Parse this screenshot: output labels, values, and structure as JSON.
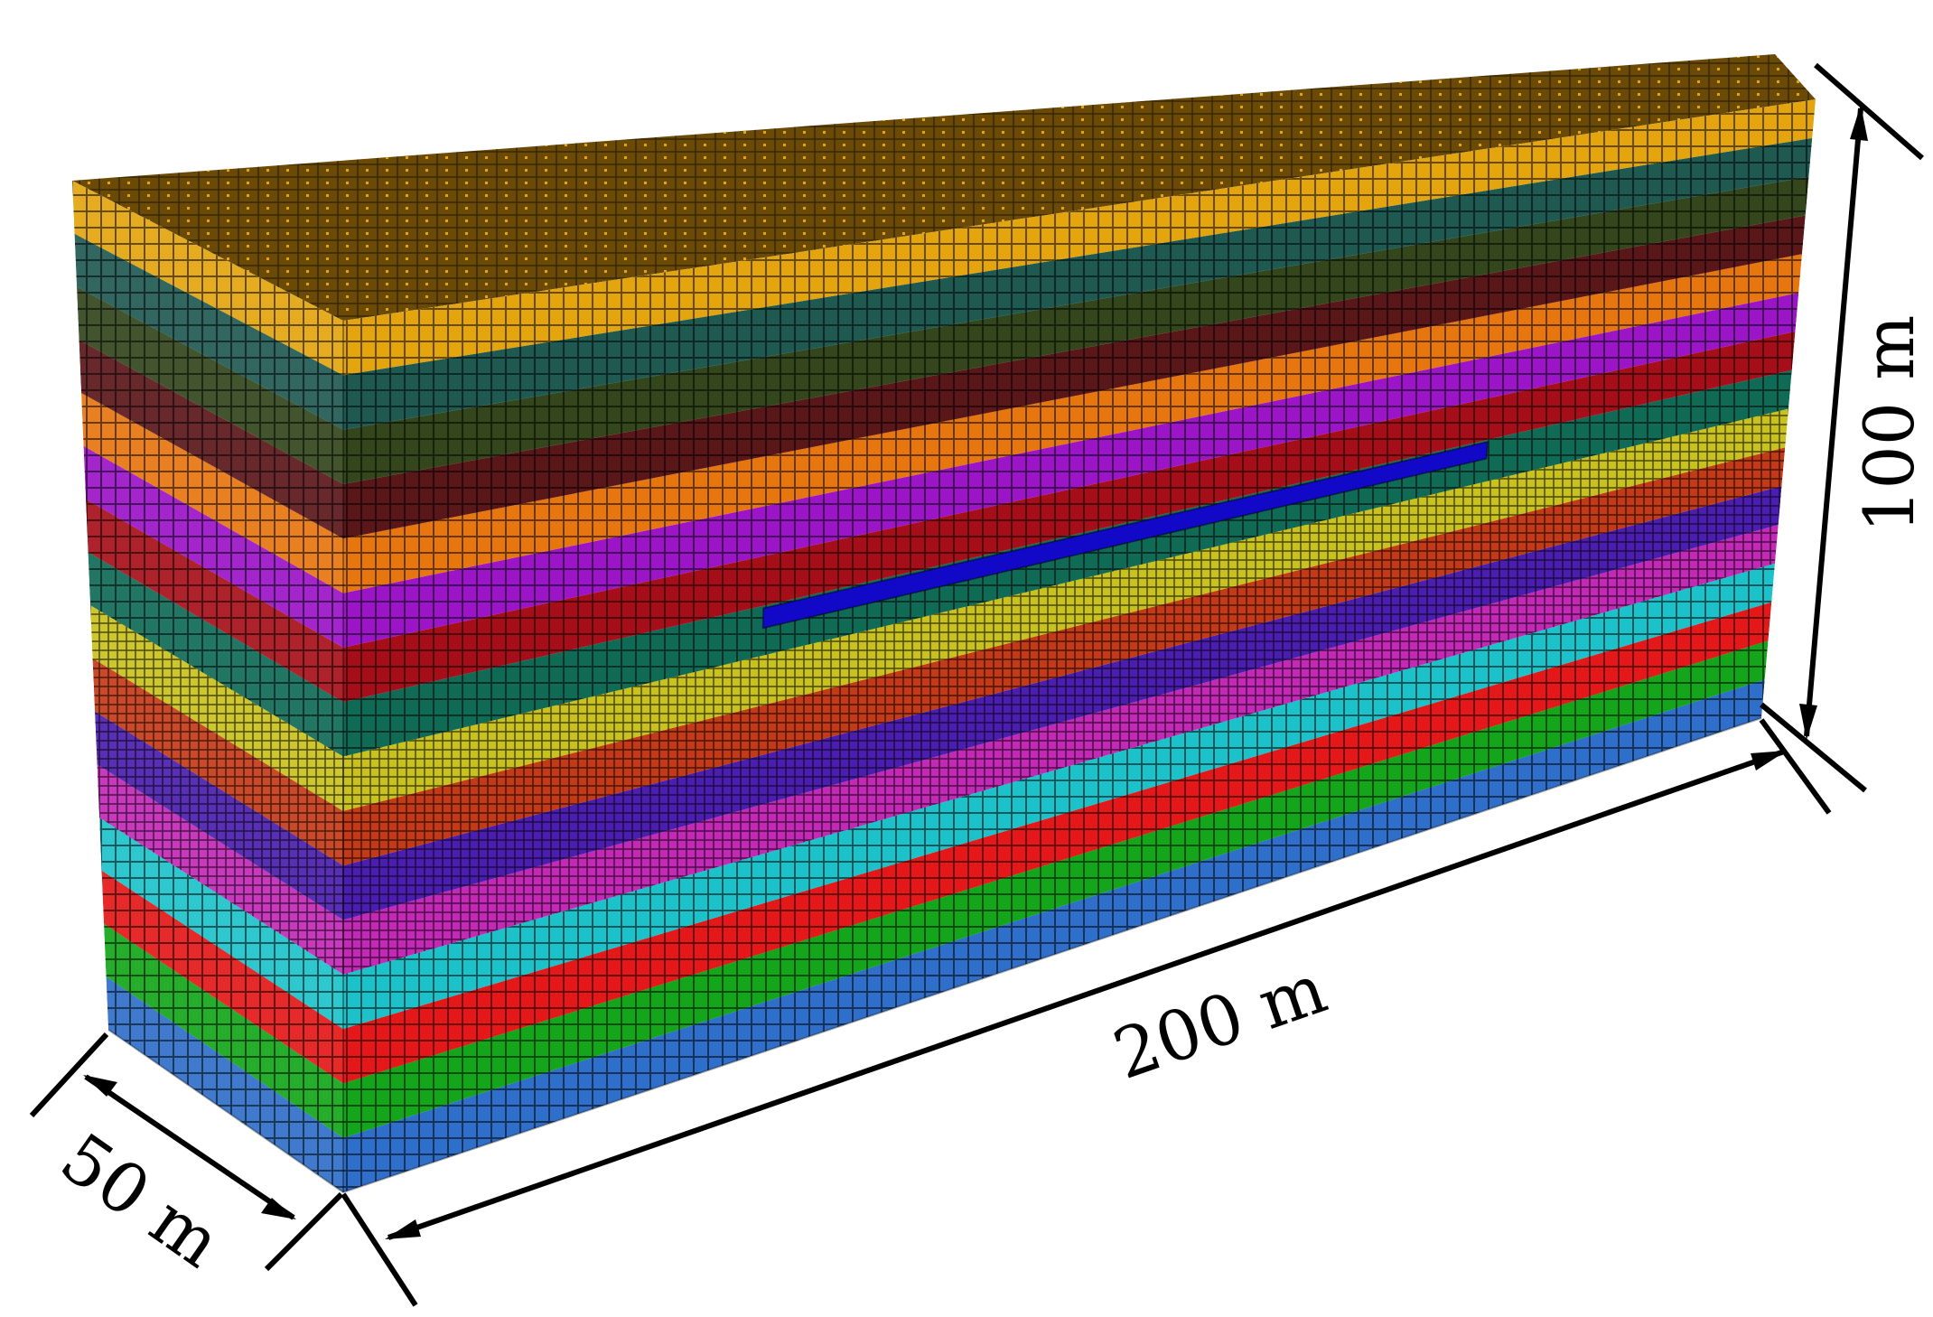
{
  "model": {
    "layers": [
      {
        "color": "#2f6fc9",
        "mesh": "fine"
      },
      {
        "color": "#13a61a",
        "mesh": "fine"
      },
      {
        "color": "#e41818",
        "mesh": "fine"
      },
      {
        "color": "#1bc2c9",
        "mesh": "fine"
      },
      {
        "color": "#c428b7",
        "mesh": "dense"
      },
      {
        "color": "#4b1db0",
        "mesh": "dense"
      },
      {
        "color": "#c53a16",
        "mesh": "dense"
      },
      {
        "color": "#c9c21a",
        "mesh": "dense"
      },
      {
        "color": "#0f6a56",
        "mesh": "fine"
      },
      {
        "color": "#a60f19",
        "mesh": "fine"
      },
      {
        "color": "#9b14c8",
        "mesh": "fine"
      },
      {
        "color": "#e7760f",
        "mesh": "fine"
      },
      {
        "color": "#5a171a",
        "mesh": "fine"
      },
      {
        "color": "#33461c",
        "mesh": "fine"
      },
      {
        "color": "#1f5a52",
        "mesh": "fine"
      },
      {
        "color": "#e3a40e",
        "mesh": "fine"
      }
    ],
    "top_surface_color": "#6b4a06",
    "inclusion_color": "#1208c8"
  },
  "dimensions": {
    "width_label": "50 m",
    "length_label": "200 m",
    "height_label": "100 m"
  }
}
